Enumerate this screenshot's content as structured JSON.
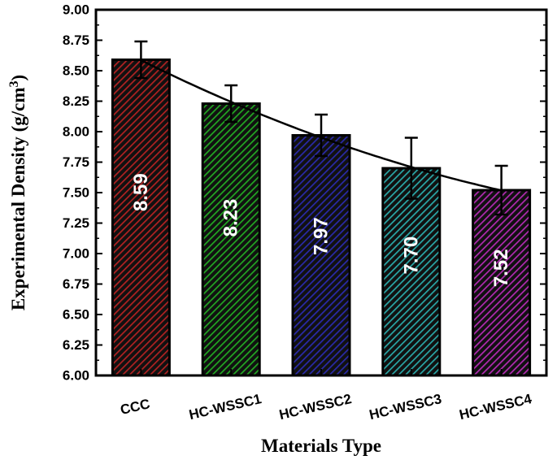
{
  "chart_data": {
    "type": "bar",
    "categories": [
      "CCC",
      "HC-WSSC1",
      "HC-WSSC2",
      "HC-WSSC3",
      "HC-WSSC4"
    ],
    "values": [
      8.59,
      8.23,
      7.97,
      7.7,
      7.52
    ],
    "value_labels": [
      "8.59",
      "8.23",
      "7.97",
      "7.70",
      "7.52"
    ],
    "error": [
      0.15,
      0.15,
      0.17,
      0.25,
      0.2
    ],
    "colors": [
      "#b22222",
      "#22a822",
      "#2a2aaa",
      "#2aa8a8",
      "#b22ab2"
    ],
    "trend_line": true,
    "ylim": [
      6.0,
      9.0
    ],
    "yticks": [
      "6.00",
      "6.25",
      "6.50",
      "6.75",
      "7.00",
      "7.25",
      "7.50",
      "7.75",
      "8.00",
      "8.25",
      "8.50",
      "8.75",
      "9.00"
    ],
    "xlabel": "Materials Type",
    "ylabel_main": "Experimental Density (g/cm",
    "ylabel_sup": "3",
    "ylabel_close": ")",
    "title": "",
    "legend": "none",
    "grid": false
  }
}
